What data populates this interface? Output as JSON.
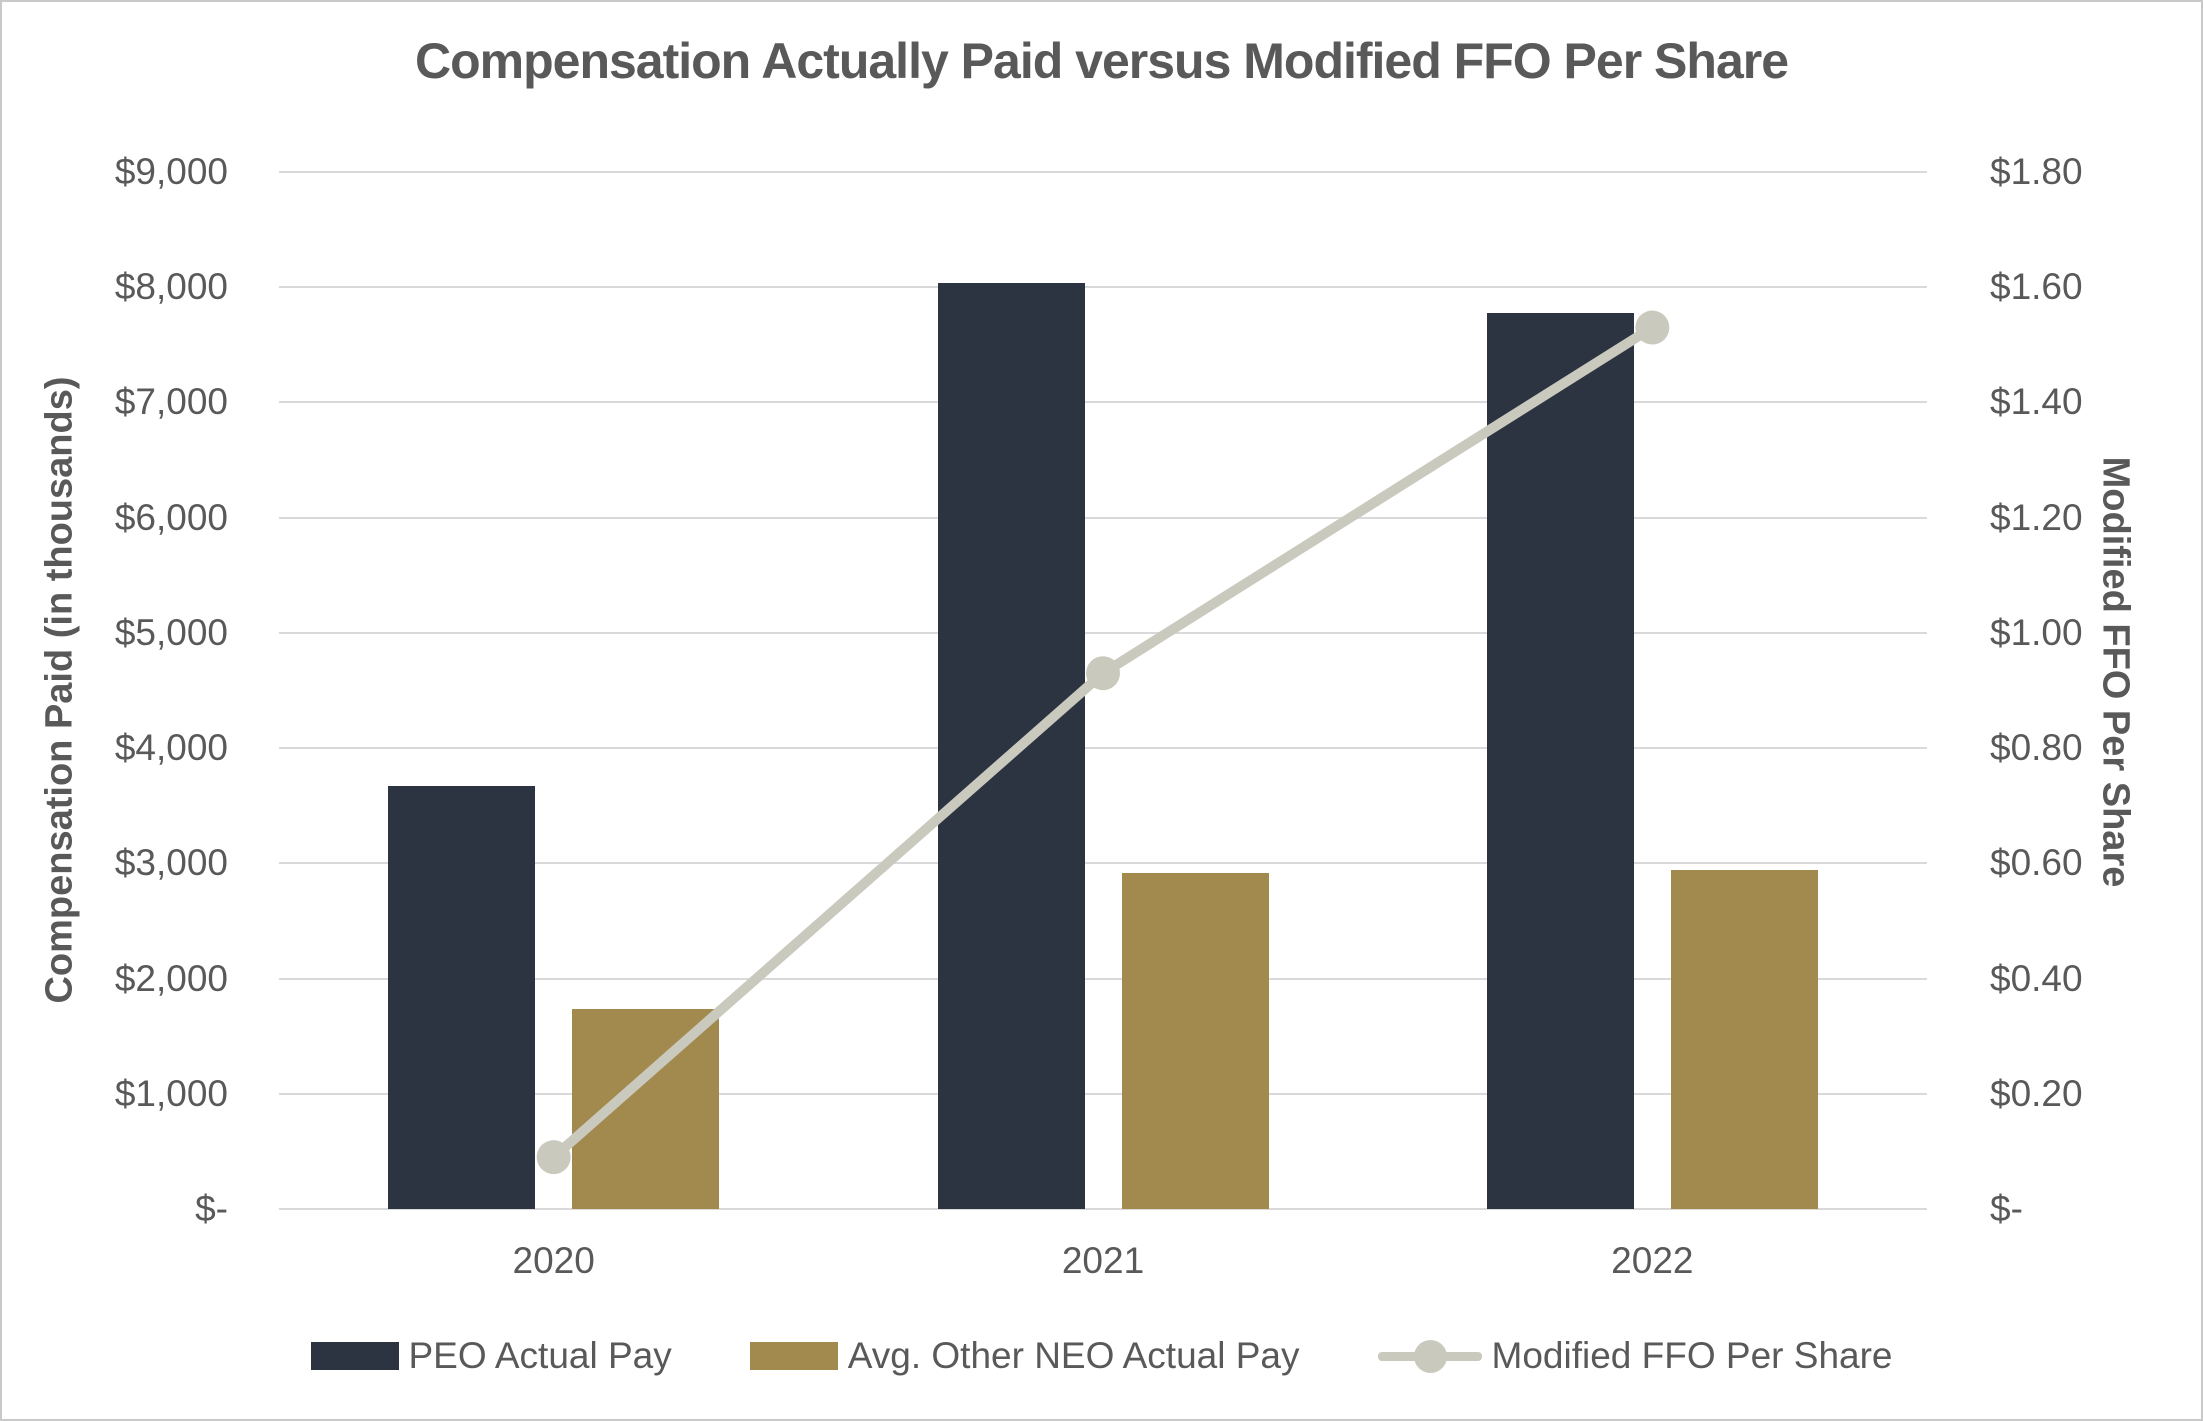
{
  "title": "Compensation Actually Paid versus Modified FFO Per Share",
  "chart_data": {
    "type": "bar",
    "subtype": "grouped-bars-with-line-combo",
    "categories": [
      "2020",
      "2021",
      "2022"
    ],
    "series": [
      {
        "name": "PEO Actual Pay",
        "type": "bar",
        "axis": "left",
        "color": "#2d3441",
        "values": [
          3670,
          8040,
          7780
        ]
      },
      {
        "name": "Avg. Other NEO Actual Pay",
        "type": "bar",
        "axis": "left",
        "color": "#a28a4e",
        "values": [
          1740,
          2920,
          2940
        ]
      },
      {
        "name": "Modified FFO Per Share",
        "type": "line",
        "axis": "right",
        "color": "#cac9be",
        "marker": "circle",
        "values": [
          0.09,
          0.93,
          1.53
        ]
      }
    ],
    "left_axis": {
      "title": "Compensation Paid (in thousands)",
      "min": 0,
      "max": 9000,
      "step": 1000,
      "tick_labels": [
        "$-",
        "$1,000",
        "$2,000",
        "$3,000",
        "$4,000",
        "$5,000",
        "$6,000",
        "$7,000",
        "$8,000",
        "$9,000"
      ]
    },
    "right_axis": {
      "title": "Modified FFO Per Share",
      "min": 0,
      "max": 1.8,
      "step": 0.2,
      "tick_labels": [
        "$-",
        "$0.20",
        "$0.40",
        "$0.60",
        "$0.80",
        "$1.00",
        "$1.20",
        "$1.40",
        "$1.60",
        "$1.80"
      ]
    },
    "grid": true,
    "legend_position": "bottom"
  },
  "colors": {
    "peo_bar": "#2d3441",
    "neo_bar": "#a28a4e",
    "ffo_line": "#cac9be",
    "text": "#595959",
    "gridline": "#d9d9d9",
    "border": "#c9c9c9",
    "background": "#ffffff"
  }
}
